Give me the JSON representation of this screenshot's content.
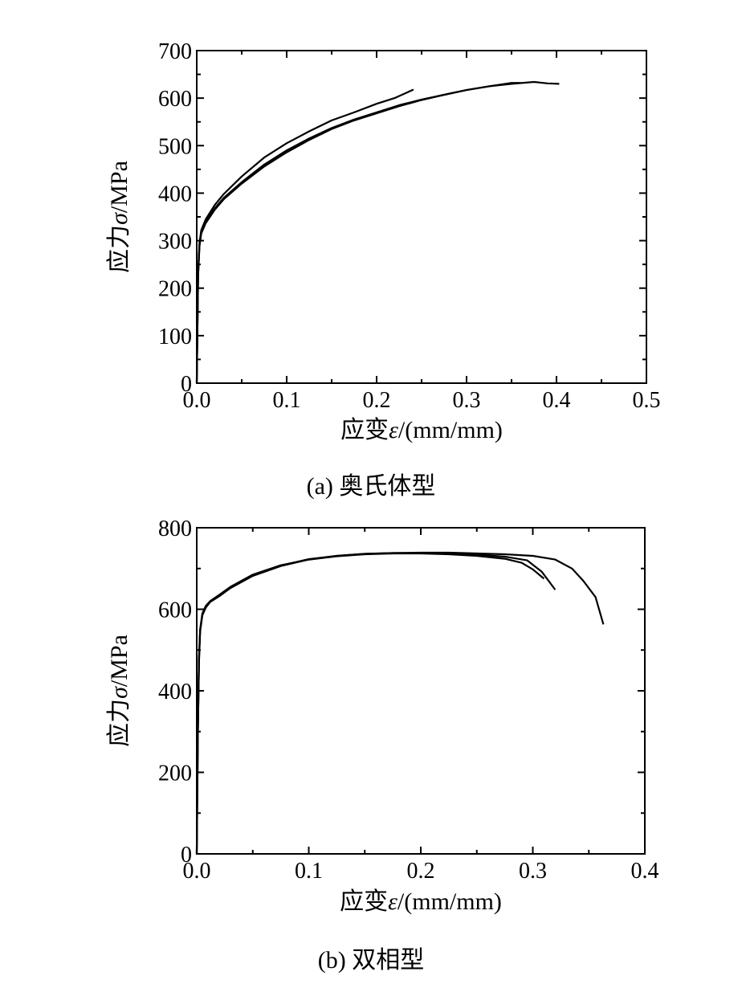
{
  "chart_data": [
    {
      "type": "line",
      "caption": "(a)  奥氏体型",
      "xlabel_prefix": "应变",
      "xlabel_symbol": "ε",
      "xlabel_suffix": "/(mm/mm)",
      "ylabel_prefix": "应力",
      "ylabel_symbol": "σ",
      "ylabel_suffix": "/MPa",
      "xlim": [
        0,
        0.5
      ],
      "ylim": [
        0,
        700
      ],
      "xticks": [
        0.0,
        0.1,
        0.2,
        0.3,
        0.4,
        0.5
      ],
      "xtick_labels": [
        "0.0",
        "0.1",
        "0.2",
        "0.3",
        "0.4",
        "0.5"
      ],
      "yticks": [
        0,
        100,
        200,
        300,
        400,
        500,
        600,
        700
      ],
      "ytick_labels": [
        "0",
        "100",
        "200",
        "300",
        "400",
        "500",
        "600",
        "700"
      ],
      "grid": false,
      "series": [
        {
          "x": [
            0,
            0.0015,
            0.003,
            0.005,
            0.01,
            0.02,
            0.03,
            0.05,
            0.075,
            0.1,
            0.125,
            0.15,
            0.175,
            0.2,
            0.22,
            0.241
          ],
          "y": [
            0,
            230,
            295,
            322,
            345,
            375,
            398,
            435,
            475,
            505,
            530,
            553,
            570,
            588,
            600,
            618
          ]
        },
        {
          "x": [
            0,
            0.0015,
            0.003,
            0.005,
            0.01,
            0.02,
            0.03,
            0.05,
            0.075,
            0.1,
            0.125,
            0.15,
            0.175,
            0.2,
            0.225,
            0.25,
            0.275,
            0.3,
            0.325,
            0.35,
            0.36
          ],
          "y": [
            0,
            228,
            290,
            318,
            340,
            368,
            390,
            423,
            460,
            490,
            515,
            537,
            555,
            570,
            585,
            597,
            607,
            617,
            625,
            632,
            632
          ]
        },
        {
          "x": [
            0,
            0.0015,
            0.003,
            0.005,
            0.01,
            0.02,
            0.03,
            0.05,
            0.075,
            0.1,
            0.125,
            0.15,
            0.175,
            0.2,
            0.225,
            0.25,
            0.275,
            0.3,
            0.325,
            0.35,
            0.375,
            0.39,
            0.403
          ],
          "y": [
            0,
            225,
            288,
            315,
            337,
            365,
            387,
            420,
            456,
            486,
            512,
            535,
            553,
            568,
            583,
            596,
            607,
            617,
            625,
            630,
            634,
            631,
            630
          ]
        }
      ]
    },
    {
      "type": "line",
      "caption": "(b)  双相型",
      "xlabel_prefix": "应变",
      "xlabel_symbol": "ε",
      "xlabel_suffix": "/(mm/mm)",
      "ylabel_prefix": "应力",
      "ylabel_symbol": "σ",
      "ylabel_suffix": "/MPa",
      "xlim": [
        0,
        0.4
      ],
      "ylim": [
        0,
        800
      ],
      "xticks": [
        0.0,
        0.1,
        0.2,
        0.3,
        0.4
      ],
      "xtick_labels": [
        "0.0",
        "0.1",
        "0.2",
        "0.3",
        "0.4"
      ],
      "yticks": [
        0,
        200,
        400,
        600,
        800
      ],
      "ytick_labels": [
        "0",
        "200",
        "400",
        "600",
        "800"
      ],
      "grid": false,
      "series": [
        {
          "x": [
            0,
            0.001,
            0.002,
            0.003,
            0.005,
            0.008,
            0.012,
            0.02,
            0.03,
            0.05,
            0.075,
            0.1,
            0.125,
            0.15,
            0.175,
            0.2,
            0.225,
            0.25,
            0.275,
            0.29,
            0.3,
            0.31
          ],
          "y": [
            0,
            300,
            480,
            550,
            590,
            608,
            620,
            635,
            655,
            685,
            708,
            722,
            730,
            735,
            737,
            737,
            735,
            731,
            724,
            714,
            698,
            675
          ]
        },
        {
          "x": [
            0,
            0.001,
            0.002,
            0.003,
            0.005,
            0.008,
            0.012,
            0.02,
            0.03,
            0.05,
            0.075,
            0.1,
            0.125,
            0.15,
            0.175,
            0.2,
            0.225,
            0.25,
            0.275,
            0.295,
            0.308,
            0.32
          ],
          "y": [
            0,
            295,
            475,
            548,
            588,
            606,
            619,
            633,
            653,
            683,
            707,
            723,
            731,
            736,
            738,
            738,
            737,
            734,
            729,
            720,
            692,
            648
          ]
        },
        {
          "x": [
            0,
            0.001,
            0.002,
            0.003,
            0.005,
            0.008,
            0.012,
            0.02,
            0.03,
            0.05,
            0.075,
            0.1,
            0.125,
            0.15,
            0.175,
            0.2,
            0.225,
            0.25,
            0.275,
            0.3,
            0.32,
            0.335,
            0.345,
            0.356,
            0.363
          ],
          "y": [
            0,
            290,
            470,
            545,
            585,
            604,
            618,
            632,
            652,
            682,
            706,
            722,
            731,
            736,
            738,
            739,
            739,
            737,
            735,
            731,
            722,
            700,
            670,
            630,
            563
          ]
        }
      ]
    }
  ]
}
